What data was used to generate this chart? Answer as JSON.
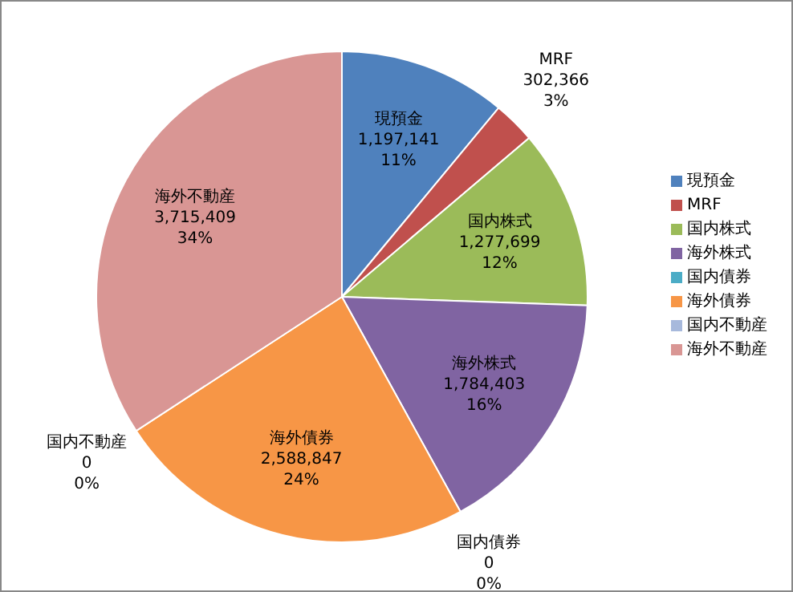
{
  "chart_data": {
    "type": "pie",
    "categories": [
      "現預金",
      "MRF",
      "国内株式",
      "海外株式",
      "国内債券",
      "海外債券",
      "国内不動産",
      "海外不動産"
    ],
    "values": [
      1197141,
      302366,
      1277699,
      1784403,
      0,
      2588847,
      0,
      3715409
    ],
    "colors": [
      "#4f81bd",
      "#c0504d",
      "#9bbb59",
      "#8064a2",
      "#4bacc6",
      "#f79646",
      "#a7b9dc",
      "#d99694"
    ],
    "value_labels": [
      "1,197,141\n11%",
      "302,366\n3%",
      "1,277,699\n12%",
      "1,784,403\n16%",
      "0\n0%",
      "2,588,847\n24%",
      "0\n0%",
      "3,715,409\n34%"
    ],
    "legend": "right"
  }
}
